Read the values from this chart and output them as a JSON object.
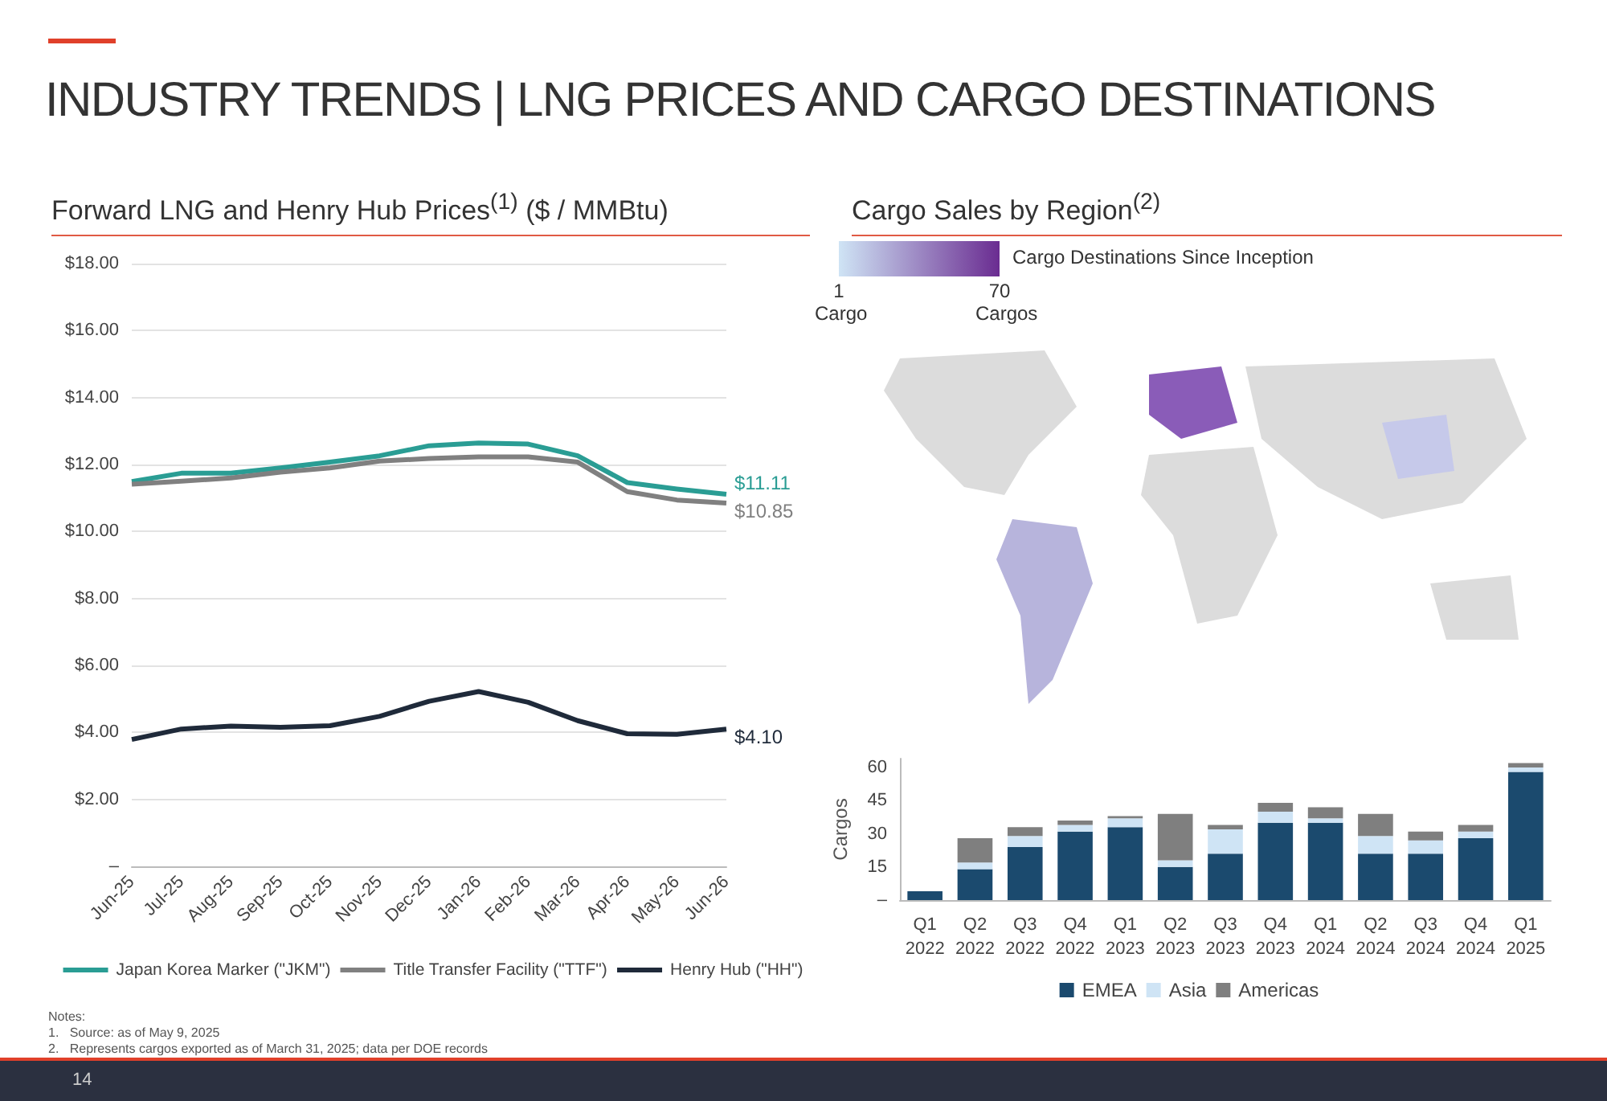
{
  "chart_data": [
    {
      "type": "other",
      "title": "INDUSTRY TRENDS | LNG PRICES AND CARGO DESTINATIONS",
      "annotations": [
        "Notes:",
        "1.   Source: as of May 9, 2025",
        "2.   Represents cargos exported as of March 31, 2025; data per DOE records",
        "14"
      ]
    },
    {
      "type": "line",
      "title": "Forward LNG and Henry Hub Prices$^{(1)}$ ($ / MMBtu)",
      "categories": [
        "Jun-25",
        "Jul-25",
        "Aug-25",
        "Sep-25",
        "Oct-25",
        "Nov-25",
        "Dec-25",
        "Jan-26",
        "Feb-26",
        "Mar-26",
        "Apr-26",
        "May-26",
        "Jun-26"
      ],
      "series": [
        {
          "name": "Japan Korea Marker (\"JKM\")",
          "color": "#2a9d94",
          "values": [
            11.49,
            11.74,
            11.74,
            11.9,
            12.07,
            12.26,
            12.56,
            12.64,
            12.61,
            12.26,
            11.46,
            11.27,
            11.11
          ],
          "value_labels": [
            null,
            null,
            null,
            null,
            null,
            null,
            null,
            null,
            null,
            null,
            null,
            null,
            "$11.11"
          ]
        },
        {
          "name": "Title Transfer Facility (\"TTF\")",
          "color": "#808080",
          "values": [
            11.41,
            11.5,
            11.6,
            11.77,
            11.9,
            12.1,
            12.18,
            12.23,
            12.23,
            12.07,
            11.19,
            10.94,
            10.85
          ],
          "value_labels": [
            null,
            null,
            null,
            null,
            null,
            null,
            null,
            null,
            null,
            null,
            null,
            null,
            "$10.85"
          ]
        },
        {
          "name": "Henry Hub (\"HH\")",
          "color": "#1f2a3a",
          "values": [
            3.79,
            4.1,
            4.19,
            4.15,
            4.2,
            4.48,
            4.93,
            5.22,
            4.9,
            4.35,
            3.96,
            3.94,
            4.1
          ],
          "value_labels": [
            null,
            null,
            null,
            null,
            null,
            null,
            null,
            null,
            null,
            null,
            null,
            null,
            "$4.10"
          ]
        }
      ],
      "ylim": [
        0,
        18
      ],
      "yticks": [
        {
          "value": 0,
          "label": "–"
        },
        {
          "value": 2,
          "label": "$2.00"
        },
        {
          "value": 4,
          "label": "$4.00"
        },
        {
          "value": 6,
          "label": "$6.00"
        },
        {
          "value": 8,
          "label": "$8.00"
        },
        {
          "value": 10,
          "label": "$10.00"
        },
        {
          "value": 12,
          "label": "$12.00"
        },
        {
          "value": 14,
          "label": "$14.00"
        },
        {
          "value": 16,
          "label": "$16.00"
        },
        {
          "value": 18,
          "label": "$18.00"
        }
      ],
      "grid": "y",
      "legend": "bottom"
    },
    {
      "type": "other",
      "title": "Cargo Sales by Region$^{(2)}$",
      "clabel": "Cargo Destinations Since Inception",
      "annotations": [
        "1\nCargo",
        "70\nCargos"
      ]
    },
    {
      "type": "bar",
      "stacked": true,
      "ylabel": "Cargos",
      "categories": [
        "Q1\n2022",
        "Q2\n2022",
        "Q3\n2022",
        "Q4\n2022",
        "Q1\n2023",
        "Q2\n2023",
        "Q3\n2023",
        "Q4\n2023",
        "Q1\n2024",
        "Q2\n2024",
        "Q3\n2024",
        "Q4\n2024",
        "Q1\n2025"
      ],
      "series": [
        {
          "name": "EMEA",
          "color": "#1b4a6e",
          "values": [
            4,
            14,
            24,
            31,
            33,
            15,
            21,
            35,
            35,
            21,
            21,
            28,
            58
          ]
        },
        {
          "name": "Asia",
          "color": "#cfe4f5",
          "values": [
            0,
            3,
            5,
            3,
            4,
            3,
            11,
            5,
            2,
            8,
            6,
            3,
            2
          ]
        },
        {
          "name": "Americas",
          "color": "#7f7f7f",
          "values": [
            0,
            11,
            4,
            2,
            1,
            21,
            2,
            4,
            5,
            10,
            4,
            3,
            2
          ]
        }
      ],
      "ylim": [
        0,
        64
      ],
      "yticks": [
        {
          "value": 0,
          "label": "–"
        },
        15,
        30,
        45,
        60
      ],
      "legend": "bottom"
    }
  ]
}
